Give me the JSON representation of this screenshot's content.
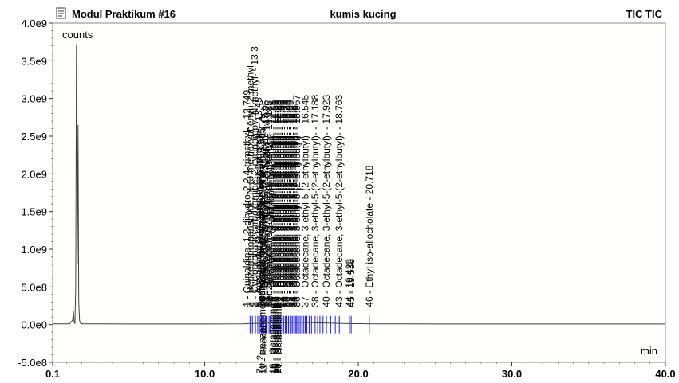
{
  "header": {
    "file_title": "Modul Praktikum #16",
    "sample_name": "kumis kucing",
    "trace_label": "TIC TIC",
    "file_icon": "document-icon"
  },
  "chart_data": {
    "type": "line",
    "ylabel": "counts",
    "xlabel": "min",
    "xlim": [
      0.1,
      40.0
    ],
    "ylim": [
      -500000000.0,
      4000000000.0
    ],
    "x_tick_labels": [
      "0.1",
      "10.0",
      "20.0",
      "30.0",
      "40.0"
    ],
    "x_ticks": [
      0.1,
      10.0,
      20.0,
      30.0,
      40.0
    ],
    "y_tick_labels": [
      "4.0e9",
      "3.5e9",
      "3.0e9",
      "2.5e9",
      "2.0e9",
      "1.5e9",
      "1.0e9",
      "5.0e8",
      "0.0e0",
      "-5.0e8"
    ],
    "y_ticks": [
      4000000000.0,
      3500000000.0,
      3000000000.0,
      2500000000.0,
      2000000000.0,
      1500000000.0,
      1000000000.0,
      500000000.0,
      0.0,
      -500000000.0
    ],
    "trace_color": "#404040",
    "marker_color": "#1a1aff",
    "series": [
      {
        "x": [
          0.1,
          1.2,
          1.4,
          1.45,
          1.5,
          1.55,
          1.6,
          1.65,
          1.7,
          1.75,
          1.8,
          1.85,
          1.9,
          2.0,
          2.2,
          5.0,
          10.0,
          12.5,
          13.0,
          14.0,
          15.0,
          16.0,
          17.0,
          18.0,
          19.0,
          20.0,
          21.0,
          25.0,
          30.0,
          40.0
        ],
        "y": [
          10000000.0,
          10000000.0,
          60000000.0,
          180000000.0,
          40000000.0,
          10000000.0,
          500000000.0,
          3720000000.0,
          800000000.0,
          2650000000.0,
          300000000.0,
          60000000.0,
          20000000.0,
          10000000.0,
          10000000.0,
          8000000.0,
          8000000.0,
          10000000.0,
          15000000.0,
          20000000.0,
          25000000.0,
          30000000.0,
          25000000.0,
          20000000.0,
          15000000.0,
          12000000.0,
          10000000.0,
          8000000.0,
          8000000.0,
          8000000.0
        ]
      }
    ],
    "peak_markers": [
      12.749,
      12.95,
      13.1,
      13.3,
      13.45,
      13.6,
      13.685,
      13.75,
      13.85,
      13.95,
      14.05,
      14.185,
      14.3,
      14.45,
      14.55,
      14.65,
      14.75,
      14.85,
      14.95,
      15.05,
      15.15,
      15.25,
      15.35,
      15.45,
      15.55,
      15.62,
      15.7,
      15.8,
      15.9,
      15.96,
      16.05,
      16.15,
      16.25,
      16.35,
      16.45,
      16.545,
      16.65,
      16.8,
      16.95,
      17.188,
      17.35,
      17.5,
      17.7,
      17.923,
      18.2,
      18.5,
      18.763,
      19.423,
      19.538,
      20.718
    ],
    "annotations": [
      {
        "text": "1 - Quinaldine, 1,2-dihydro-2,2,4-trimethyl- - 12.749",
        "x": 12.749
      },
      {
        "text": "2 - Benzenepropanamide, N-(3-methoxyphenyl)-2-methyl-",
        "x": 12.95
      },
      {
        "text": "3 - Cyclopropanecarboxamide, 2-cyclopropyl-N-methyl- - 13.3",
        "x": 13.25
      },
      {
        "text": "5 - Acetamide, N-[4-(trimethylsilyl)phenyl]- - 13.45",
        "x": 13.5
      },
      {
        "text": "7 - 2-Benzimidazolecarboxylic acid - 13.6",
        "x": 13.6
      },
      {
        "text": "Benzamide, N-hydroxy-N-methyl- - 13.685",
        "x": 13.685
      },
      {
        "text": "10 - Benzenemethanamine, N-methyl- - 13.75",
        "x": 13.75
      },
      {
        "text": "11 - Phenol, 3,4-dimethyl- - 13.85",
        "x": 13.85
      },
      {
        "text": "12 - Octadecane, 3-ethyl-5-(2-ethylbutyl)- - 13.95",
        "x": 13.95
      },
      {
        "text": "13 - Hydroxylamine, N-phenyl-O-acetyl- - 14.05",
        "x": 14.05
      },
      {
        "text": "Benzenemethanol, 4-hydroxy-N-methyl- - 14.185",
        "x": 14.185
      },
      {
        "text": "14 - Ethanone, 1-(4-aminophenyl)- - 14.3",
        "x": 14.3
      },
      {
        "text": "16 - Octadecane, 3-ethyl-5-(2-ethylbutyl)- - 14.45",
        "x": 14.45
      },
      {
        "text": "18 - Octadecane, 3-ethyl-5-(2-ethylbutyl)- - 14.55",
        "x": 14.55
      },
      {
        "text": "19 - Octadecane, 3-ethyl-5-(2-ethylbutyl)- - 14.65",
        "x": 14.65
      },
      {
        "text": "20 - Octadecane, 3-ethyl-5-(2-ethylbutyl)- - 14.75",
        "x": 14.75
      },
      {
        "text": "21 - Octadecane, 3-ethyl-5-(2-ethylbutyl)- - 14.85",
        "x": 14.85
      },
      {
        "text": "22 - Octadecane, 3-ethyl-5-(2-ethylbutyl)- - 14.95",
        "x": 14.95
      },
      {
        "text": "24 - Octadecane, 3-ethyl-5-(2-ethylbutyl)- - 15.05",
        "x": 15.05
      },
      {
        "text": "26 - Octadecane, 3-ethyl-5-(2-ethylbutyl)- - 15.15",
        "x": 15.15
      },
      {
        "text": "28 - Octadecane, 3-ethyl-5-(2-ethylbutyl)- - 15.25",
        "x": 15.25
      },
      {
        "text": "30 - Octadecane, 3-ethyl-5-(2-ethylbutyl)- - 15.35",
        "x": 15.35
      },
      {
        "text": "31 - Octadecane, 3-ethyl-5-(2-ethylbutyl)- - 15.45",
        "x": 15.45
      },
      {
        "text": "32 - Octadecane, 3-ethyl-5-(2-ethylbutyl)- - 15.55",
        "x": 15.55
      },
      {
        "text": "33 - Octadecane, 3-ethyl-5-(2-ethylbutyl)- - 15.7",
        "x": 15.7
      },
      {
        "text": "34 - Octadecane, 3-ethyl-5-(2-ethylbutyl)- - 15.8",
        "x": 15.8
      },
      {
        "text": "35 - Octadecane, 3-ethyl-5-(2-ethylbutyl)- - 15.9",
        "x": 15.9
      },
      {
        "text": "36 - Octadecane, 3-ethyl-5-(2-ethylbutyl)- - 15.967",
        "x": 16.0
      },
      {
        "text": "37 - Octadecane, 3-ethyl-5-(2-ethylbutyl)- - 16.545",
        "x": 16.545
      },
      {
        "text": "38 - Octadecane, 3-ethyl-5-(2-ethylbutyl)- - 17.188",
        "x": 17.188
      },
      {
        "text": "40 - Octadecane, 3-ethyl-5-(2-ethylbutyl)- - 17.923",
        "x": 17.923
      },
      {
        "text": "43 - Octadecane, 3-ethyl-5-(2-ethylbutyl)- - 18.763",
        "x": 18.763
      },
      {
        "text": "44 - 19.423",
        "x": 19.423
      },
      {
        "text": "45 - 19.538",
        "x": 19.538
      },
      {
        "text": "46 - Ethyl iso-allocholate - 20.718",
        "x": 20.718
      }
    ],
    "lower_labels": [
      {
        "text": "7 - 2",
        "x": 13.6
      },
      {
        "text": "10 - Benzenemethanamine",
        "x": 13.75
      },
      {
        "text": "11 - Phenol",
        "x": 13.85
      },
      {
        "text": "16 - Octadecane",
        "x": 14.45
      },
      {
        "text": "18 - Octadecane",
        "x": 14.55
      },
      {
        "text": "19 - Octadecane",
        "x": 14.65
      },
      {
        "text": "20 - Octadecane",
        "x": 14.75
      },
      {
        "text": "21 - Octadecane",
        "x": 14.85
      }
    ]
  }
}
